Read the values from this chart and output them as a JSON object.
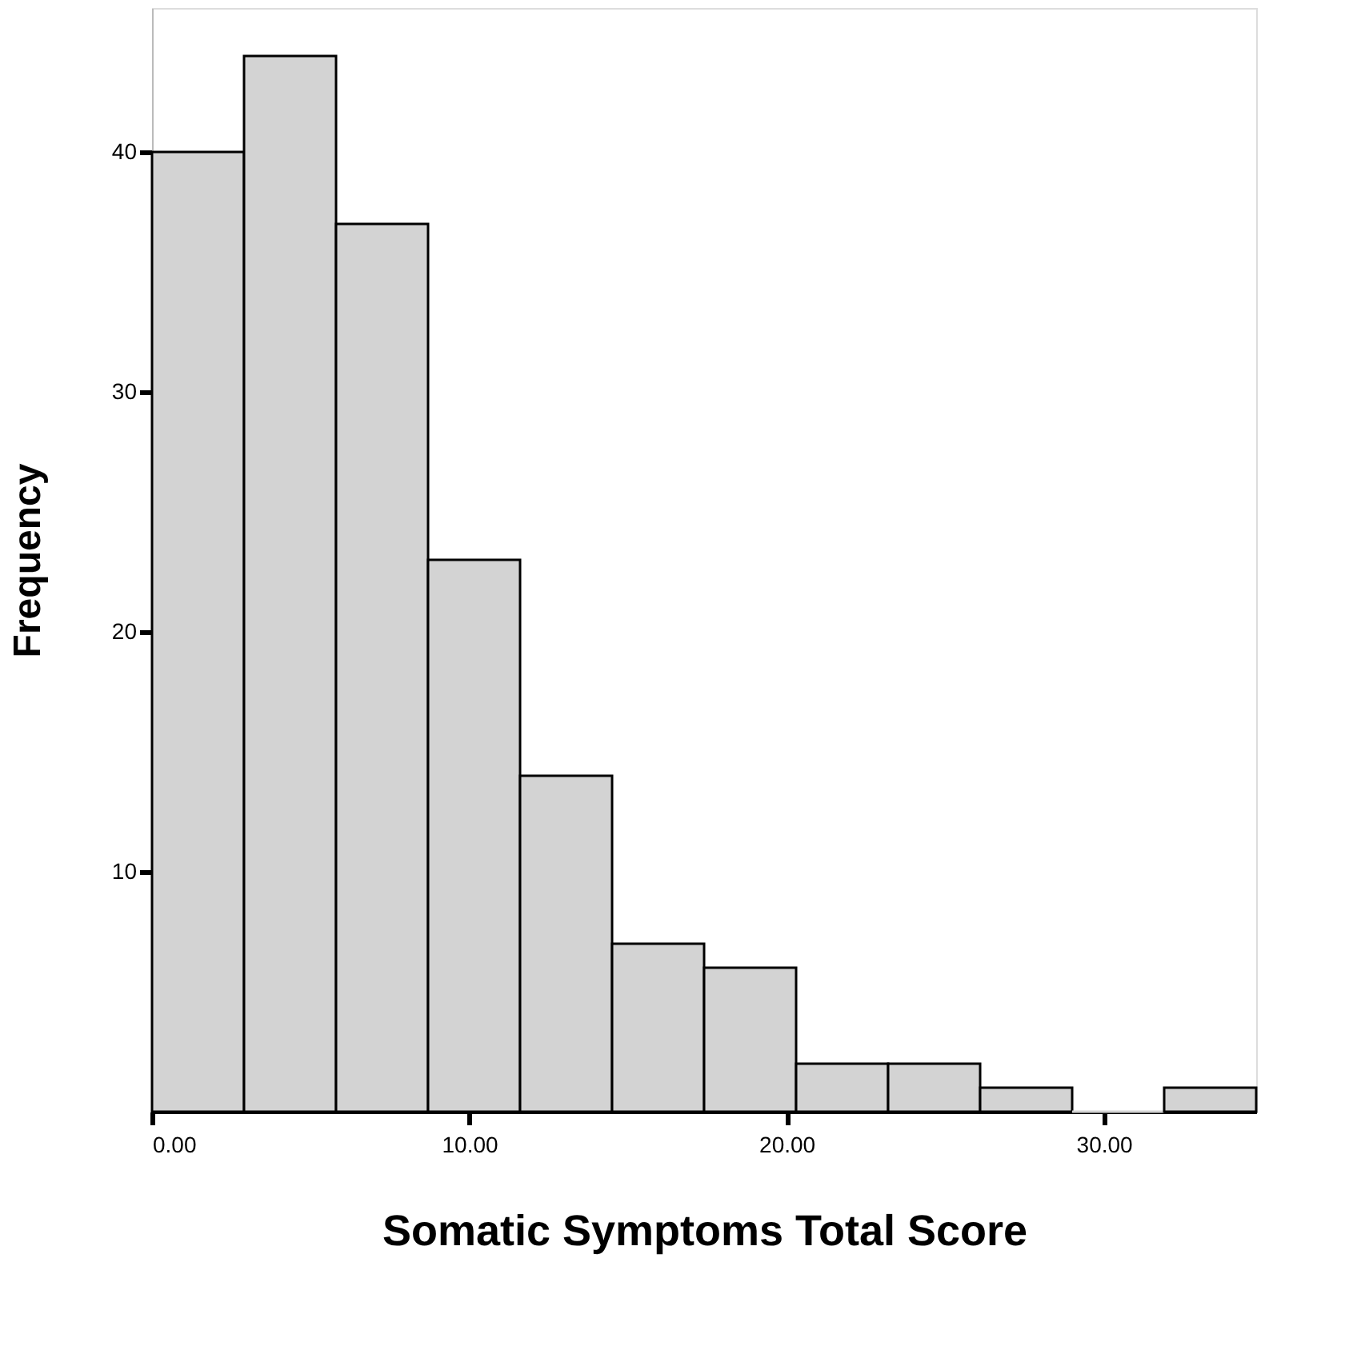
{
  "chart_data": {
    "type": "histogram",
    "xlabel": "Somatic Symptoms Total Score",
    "ylabel": "Frequency",
    "bins": [
      0,
      2.9,
      5.8,
      8.7,
      11.6,
      14.5,
      17.4,
      20.3,
      23.2,
      26.1,
      29.0,
      31.9,
      34.8
    ],
    "values": [
      40,
      44,
      37,
      23,
      14,
      7,
      6,
      2,
      2,
      1,
      0,
      1
    ],
    "color": "#d3d3d3",
    "xlim": [
      0,
      34.8
    ],
    "ylim": [
      0,
      46
    ],
    "xticks": [
      {
        "value": 0,
        "label": "0.00"
      },
      {
        "value": 10,
        "label": "10.00"
      },
      {
        "value": 20,
        "label": "20.00"
      },
      {
        "value": 30,
        "label": "30.00"
      }
    ],
    "yticks": [
      10,
      20,
      30,
      40
    ],
    "grid": false
  }
}
